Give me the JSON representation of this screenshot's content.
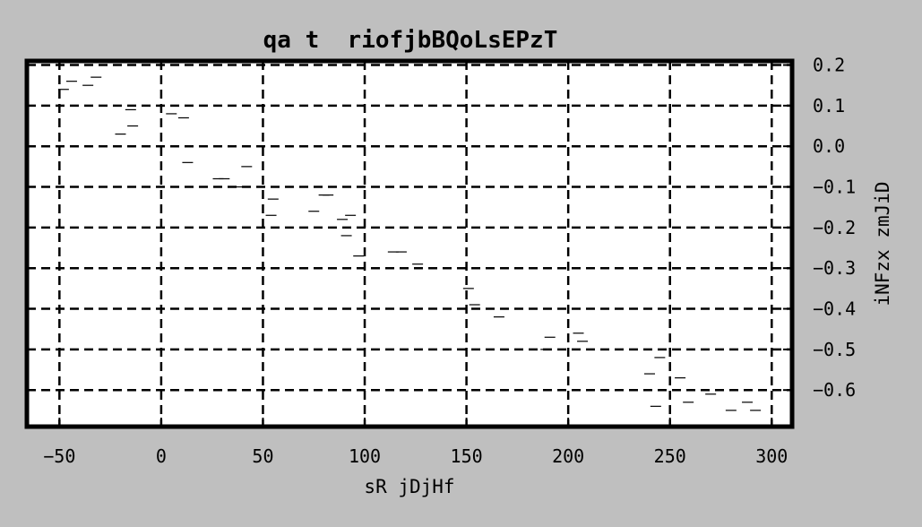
{
  "chart_data": {
    "type": "scatter",
    "title": "qa t  riofjbBQoLsEPzT",
    "xlabel": "sR jDjHf",
    "ylabel": "iNFzx zmJiD",
    "xlim": [
      -66,
      310
    ],
    "ylim": [
      -0.69,
      0.21
    ],
    "xticks": [
      -50,
      0,
      50,
      100,
      150,
      200,
      250,
      300
    ],
    "xtick_labels": [
      "−50",
      "0",
      "50",
      "100",
      "150",
      "200",
      "250",
      "300"
    ],
    "yticks": [
      0.2,
      0.1,
      0.0,
      -0.1,
      -0.2,
      -0.3,
      -0.4,
      -0.5,
      -0.6
    ],
    "ytick_labels": [
      "0.2",
      "0.1",
      "0.0",
      "−0.1",
      "−0.2",
      "−0.3",
      "−0.4",
      "−0.5",
      "−0.6"
    ],
    "y_axis_side": "right",
    "grid": true,
    "grid_style": "dashed",
    "marker": "hline",
    "colors": {
      "background": "#bfbfbf",
      "plot_area": "#ffffff",
      "frame": "#000000",
      "grid": "#000000",
      "markers": "#000000"
    },
    "points": [
      {
        "x": -48,
        "y": 0.14
      },
      {
        "x": -44,
        "y": 0.16
      },
      {
        "x": -36,
        "y": 0.15
      },
      {
        "x": -32,
        "y": 0.17
      },
      {
        "x": -15,
        "y": 0.09
      },
      {
        "x": -14,
        "y": 0.05
      },
      {
        "x": -20,
        "y": 0.03
      },
      {
        "x": 5,
        "y": 0.08
      },
      {
        "x": 11,
        "y": 0.07
      },
      {
        "x": 13,
        "y": -0.04
      },
      {
        "x": 28,
        "y": -0.08
      },
      {
        "x": 31,
        "y": -0.08
      },
      {
        "x": 39,
        "y": -0.1
      },
      {
        "x": 42,
        "y": -0.05
      },
      {
        "x": 55,
        "y": -0.13
      },
      {
        "x": 54,
        "y": -0.17
      },
      {
        "x": 75,
        "y": -0.16
      },
      {
        "x": 80,
        "y": -0.12
      },
      {
        "x": 82,
        "y": -0.12
      },
      {
        "x": 89,
        "y": -0.18
      },
      {
        "x": 93,
        "y": -0.17
      },
      {
        "x": 91,
        "y": -0.22
      },
      {
        "x": 97,
        "y": -0.27
      },
      {
        "x": 114,
        "y": -0.26
      },
      {
        "x": 118,
        "y": -0.26
      },
      {
        "x": 126,
        "y": -0.29
      },
      {
        "x": 151,
        "y": -0.35
      },
      {
        "x": 154,
        "y": -0.39
      },
      {
        "x": 166,
        "y": -0.42
      },
      {
        "x": 191,
        "y": -0.47
      },
      {
        "x": 189,
        "y": -0.5
      },
      {
        "x": 205,
        "y": -0.46
      },
      {
        "x": 207,
        "y": -0.48
      },
      {
        "x": 240,
        "y": -0.56
      },
      {
        "x": 245,
        "y": -0.52
      },
      {
        "x": 243,
        "y": -0.64
      },
      {
        "x": 255,
        "y": -0.57
      },
      {
        "x": 259,
        "y": -0.63
      },
      {
        "x": 270,
        "y": -0.61
      },
      {
        "x": 280,
        "y": -0.65
      },
      {
        "x": 288,
        "y": -0.63
      },
      {
        "x": 292,
        "y": -0.65
      }
    ]
  }
}
